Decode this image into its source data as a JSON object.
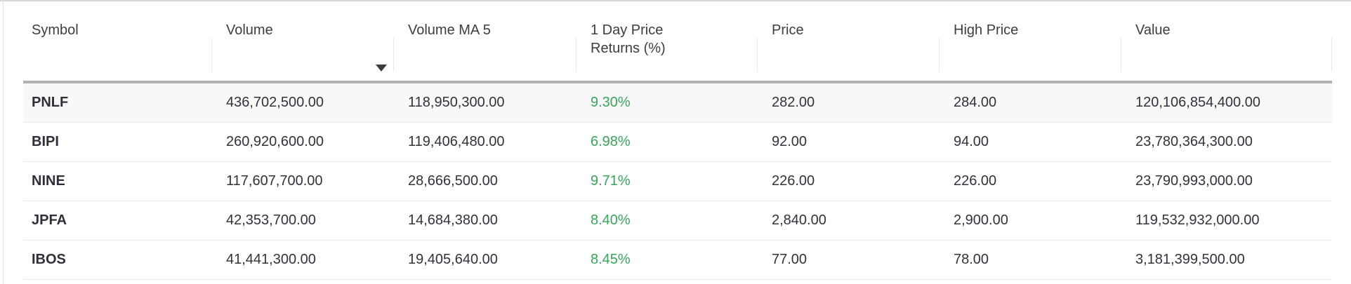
{
  "colors": {
    "positive": "#3aa35c",
    "header_underline": "#b0b0b0"
  },
  "table": {
    "sorted_column": "volume",
    "sort_direction": "desc",
    "columns": [
      {
        "id": "symbol",
        "label": "Symbol"
      },
      {
        "id": "volume",
        "label": "Volume",
        "sorted": "desc"
      },
      {
        "id": "volume-ma-5",
        "label": "Volume MA 5"
      },
      {
        "id": "returns",
        "label": "1 Day Price Returns (%)"
      },
      {
        "id": "price",
        "label": "Price"
      },
      {
        "id": "high-price",
        "label": "High Price"
      },
      {
        "id": "value",
        "label": "Value"
      }
    ],
    "rows": [
      {
        "cells": [
          "PNLF",
          "436,702,500.00",
          "118,950,300.00",
          "9.30%",
          "282.00",
          "284.00",
          "120,106,854,400.00"
        ]
      },
      {
        "cells": [
          "BIPI",
          "260,920,600.00",
          "119,406,480.00",
          "6.98%",
          "92.00",
          "94.00",
          "23,780,364,300.00"
        ]
      },
      {
        "cells": [
          "NINE",
          "117,607,700.00",
          "28,666,500.00",
          "9.71%",
          "226.00",
          "226.00",
          "23,790,993,000.00"
        ]
      },
      {
        "cells": [
          "JPFA",
          "42,353,700.00",
          "14,684,380.00",
          "8.40%",
          "2,840.00",
          "2,900.00",
          "119,532,932,000.00"
        ]
      },
      {
        "cells": [
          "IBOS",
          "41,441,300.00",
          "19,405,640.00",
          "8.45%",
          "77.00",
          "78.00",
          "3,181,399,500.00"
        ]
      }
    ]
  }
}
